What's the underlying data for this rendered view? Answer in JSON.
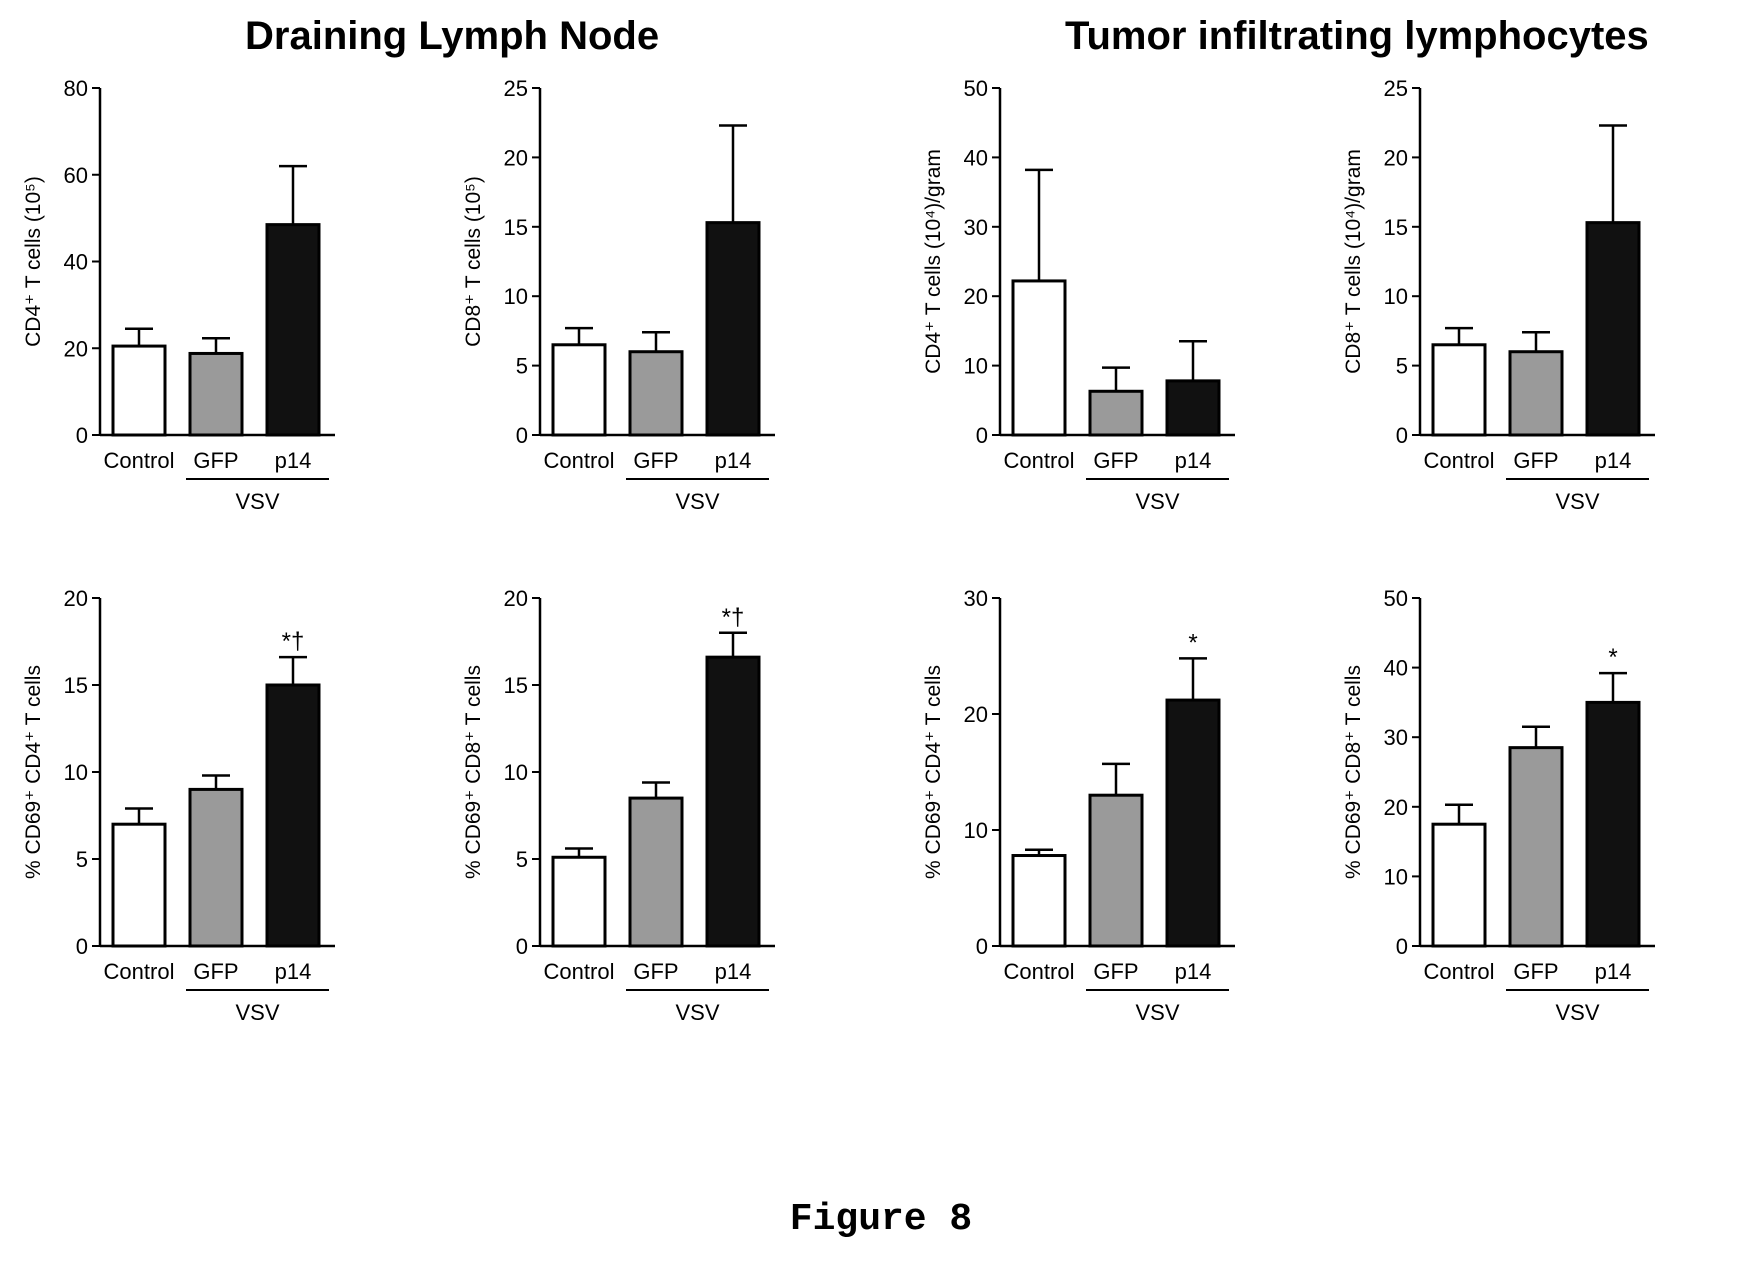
{
  "titles": {
    "left": "Draining Lymph Node",
    "right": "Tumor infiltrating lymphocytes"
  },
  "caption": "Figure 8",
  "colors": {
    "control": "#ffffff",
    "gfp": "#9a9a9a",
    "p14": "#111111",
    "axis": "#000000"
  },
  "chart_data": [
    {
      "type": "bar",
      "categories": [
        "Control",
        "GFP",
        "p14"
      ],
      "group_label": "VSV",
      "ylabel": "CD4⁺ T cells (10⁵)",
      "ylim": [
        0,
        80
      ],
      "yticks": [
        0,
        20,
        40,
        60,
        80
      ],
      "values": [
        20.5,
        18.8,
        48.5
      ],
      "errors": [
        4,
        3.5,
        13.5
      ],
      "annotations": [
        "",
        "",
        ""
      ]
    },
    {
      "type": "bar",
      "categories": [
        "Control",
        "GFP",
        "p14"
      ],
      "group_label": "VSV",
      "ylabel": "CD8⁺ T cells (10⁵)",
      "ylim": [
        0,
        25
      ],
      "yticks": [
        0,
        5,
        10,
        15,
        20,
        25
      ],
      "values": [
        6.5,
        6.0,
        15.3
      ],
      "errors": [
        1.2,
        1.4,
        7.0
      ],
      "annotations": [
        "",
        "",
        ""
      ]
    },
    {
      "type": "bar",
      "categories": [
        "Control",
        "GFP",
        "p14"
      ],
      "group_label": "VSV",
      "ylabel": "CD4⁺ T cells (10⁴)/gram",
      "ylim": [
        0,
        50
      ],
      "yticks": [
        0,
        10,
        20,
        30,
        40,
        50
      ],
      "values": [
        22.2,
        6.3,
        7.8
      ],
      "errors": [
        16,
        3.4,
        5.7
      ],
      "annotations": [
        "",
        "",
        ""
      ]
    },
    {
      "type": "bar",
      "categories": [
        "Control",
        "GFP",
        "p14"
      ],
      "group_label": "VSV",
      "ylabel": "CD8⁺ T cells (10⁴)/gram",
      "ylim": [
        0,
        25
      ],
      "yticks": [
        0,
        5,
        10,
        15,
        20,
        25
      ],
      "values": [
        6.5,
        6.0,
        15.3
      ],
      "errors": [
        1.2,
        1.4,
        7.0
      ],
      "annotations": [
        "",
        "",
        ""
      ]
    },
    {
      "type": "bar",
      "categories": [
        "Control",
        "GFP",
        "p14"
      ],
      "group_label": "VSV",
      "ylabel": "% CD69⁺ CD4⁺ T cells",
      "ylim": [
        0,
        20
      ],
      "yticks": [
        0,
        5,
        10,
        15,
        20
      ],
      "values": [
        7.0,
        9.0,
        15.0
      ],
      "errors": [
        0.9,
        0.8,
        1.6
      ],
      "annotations": [
        "",
        "",
        "*†"
      ]
    },
    {
      "type": "bar",
      "categories": [
        "Control",
        "GFP",
        "p14"
      ],
      "group_label": "VSV",
      "ylabel": "% CD69⁺ CD8⁺ T cells",
      "ylim": [
        0,
        20
      ],
      "yticks": [
        0,
        5,
        10,
        15,
        20
      ],
      "values": [
        5.1,
        8.5,
        16.6
      ],
      "errors": [
        0.5,
        0.9,
        1.4
      ],
      "annotations": [
        "",
        "",
        "*†"
      ]
    },
    {
      "type": "bar",
      "categories": [
        "Control",
        "GFP",
        "p14"
      ],
      "group_label": "VSV",
      "ylabel": "% CD69⁺ CD4⁺ T cells",
      "ylim": [
        0,
        30
      ],
      "yticks": [
        0,
        10,
        20,
        30
      ],
      "values": [
        7.8,
        13.0,
        21.2
      ],
      "errors": [
        0.5,
        2.7,
        3.6
      ],
      "annotations": [
        "",
        "",
        "*"
      ]
    },
    {
      "type": "bar",
      "categories": [
        "Control",
        "GFP",
        "p14"
      ],
      "group_label": "VSV",
      "ylabel": "% CD69⁺ CD8⁺ T cells",
      "ylim": [
        0,
        50
      ],
      "yticks": [
        0,
        10,
        20,
        30,
        40,
        50
      ],
      "values": [
        17.5,
        28.5,
        35.0
      ],
      "errors": [
        2.8,
        3.0,
        4.2
      ],
      "annotations": [
        "",
        "",
        "*"
      ]
    }
  ]
}
